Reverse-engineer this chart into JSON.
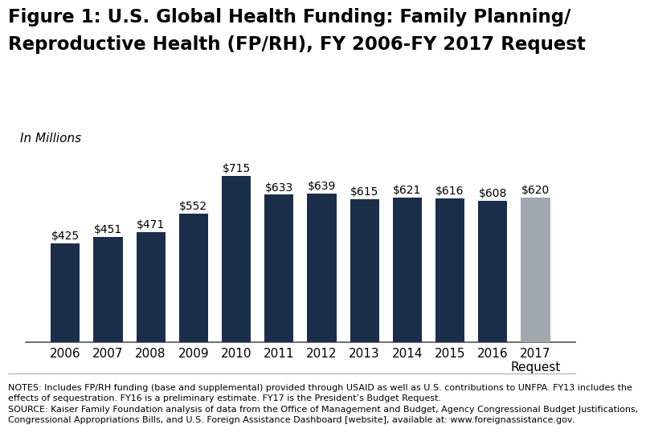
{
  "title_line1": "Figure 1: U.S. Global Health Funding: Family Planning/",
  "title_line2": "Reproductive Health (FP/RH), FY 2006-FY 2017 Request",
  "subtitle": "In Millions",
  "years": [
    "2006",
    "2007",
    "2008",
    "2009",
    "2010",
    "2011",
    "2012",
    "2013",
    "2014",
    "2015",
    "2016",
    "2017"
  ],
  "year_labels": [
    "2006",
    "2007",
    "2008",
    "2009",
    "2010",
    "2011",
    "2012",
    "2013",
    "2014",
    "2015",
    "2016",
    "2017\nRequest"
  ],
  "values": [
    425,
    451,
    471,
    552,
    715,
    633,
    639,
    615,
    621,
    616,
    608,
    620
  ],
  "bar_labels": [
    "$425",
    "$451",
    "$471",
    "$552",
    "$715",
    "$633",
    "$639",
    "$615",
    "$621",
    "$616",
    "$608",
    "$620"
  ],
  "bar_colors": [
    "#1a2e4a",
    "#1a2e4a",
    "#1a2e4a",
    "#1a2e4a",
    "#1a2e4a",
    "#1a2e4a",
    "#1a2e4a",
    "#1a2e4a",
    "#1a2e4a",
    "#1a2e4a",
    "#1a2e4a",
    "#a0a8b0"
  ],
  "ylim": [
    0,
    800
  ],
  "notes_line1": "NOTES: Includes FP/RH funding (base and supplemental) provided through USAID as well as U.S. contributions to UNFPA. FY13 includes the",
  "notes_line2": "effects of sequestration. FY16 is a preliminary estimate. FY17 is the President’s Budget Request.",
  "source_line1": "SOURCE: Kaiser Family Foundation analysis of data from the Office of Management and Budget, Agency Congressional Budget Justifications,",
  "source_line2": "Congressional Appropriations Bills, and U.S. Foreign Assistance Dashboard [website], available at: www.foreignassistance.gov.",
  "background_color": "#ffffff",
  "title_fontsize": 16.5,
  "bar_label_fontsize": 10,
  "axis_tick_fontsize": 11,
  "note_fontsize": 8,
  "logo_bg": "#1a3a5c"
}
